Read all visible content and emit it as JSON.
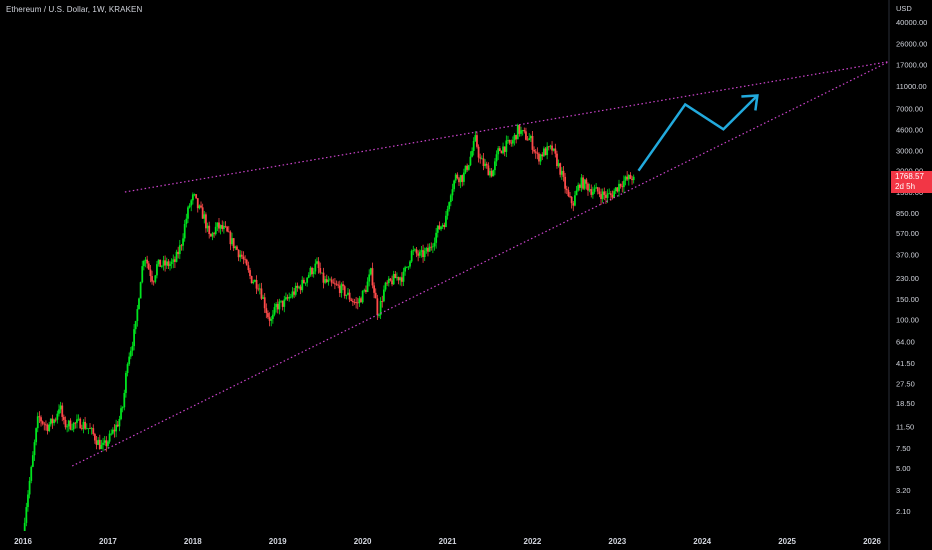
{
  "header": {
    "title": "Ethereum / U.S. Dollar, 1W, KRAKEN"
  },
  "price_tag": {
    "price": "1768.57",
    "countdown": "2d 5h",
    "color": "#f23645"
  },
  "colors": {
    "up": "#00e51f",
    "down": "#ff4a4a",
    "trendline": "#cc44cc",
    "arrow": "#22aadd",
    "background": "#000000"
  },
  "chart_data": {
    "type": "candlestick",
    "title": "Ethereum / U.S. Dollar, 1W, KRAKEN",
    "y_scale": "log",
    "y_unit": "USD",
    "y_ticks": [
      "40000.00",
      "26000.00",
      "17000.00",
      "11000.00",
      "7000.00",
      "4600.00",
      "3000.00",
      "2000.00",
      "1300.00",
      "850.00",
      "570.00",
      "370.00",
      "230.00",
      "150.00",
      "100.00",
      "64.00",
      "41.50",
      "27.50",
      "18.50",
      "11.50",
      "7.50",
      "5.00",
      "3.20",
      "2.10"
    ],
    "x_ticks": [
      "2016",
      "2017",
      "2018",
      "2019",
      "2020",
      "2021",
      "2022",
      "2023",
      "2024",
      "2025",
      "2026"
    ],
    "xlim": [
      2016.0,
      2026.3
    ],
    "ylim": [
      1.6,
      60000
    ],
    "current_price": 1768.57,
    "price_path": [
      [
        2016.0,
        1.0
      ],
      [
        2016.05,
        2.2
      ],
      [
        2016.12,
        5.0
      ],
      [
        2016.17,
        10.0
      ],
      [
        2016.2,
        14.0
      ],
      [
        2016.3,
        11.5
      ],
      [
        2016.4,
        13.5
      ],
      [
        2016.45,
        18.0
      ],
      [
        2016.5,
        12.0
      ],
      [
        2016.6,
        12.0
      ],
      [
        2016.7,
        12.5
      ],
      [
        2016.8,
        11.0
      ],
      [
        2016.9,
        8.5
      ],
      [
        2016.95,
        7.5
      ],
      [
        2017.0,
        8.2
      ],
      [
        2017.1,
        11.0
      ],
      [
        2017.15,
        13.0
      ],
      [
        2017.2,
        18.0
      ],
      [
        2017.25,
        45.0
      ],
      [
        2017.3,
        60.0
      ],
      [
        2017.35,
        90.0
      ],
      [
        2017.4,
        220.0
      ],
      [
        2017.45,
        380.0
      ],
      [
        2017.5,
        280.0
      ],
      [
        2017.55,
        220.0
      ],
      [
        2017.6,
        300.0
      ],
      [
        2017.7,
        300.0
      ],
      [
        2017.8,
        310.0
      ],
      [
        2017.88,
        450.0
      ],
      [
        2017.93,
        700.0
      ],
      [
        2017.98,
        1000.0
      ],
      [
        2018.03,
        1200.0
      ],
      [
        2018.08,
        950.0
      ],
      [
        2018.15,
        800.0
      ],
      [
        2018.22,
        500.0
      ],
      [
        2018.3,
        650.0
      ],
      [
        2018.4,
        600.0
      ],
      [
        2018.5,
        450.0
      ],
      [
        2018.6,
        350.0
      ],
      [
        2018.7,
        230.0
      ],
      [
        2018.8,
        200.0
      ],
      [
        2018.9,
        110.0
      ],
      [
        2018.95,
        95.0
      ],
      [
        2019.0,
        130.0
      ],
      [
        2019.1,
        140.0
      ],
      [
        2019.2,
        170.0
      ],
      [
        2019.3,
        200.0
      ],
      [
        2019.4,
        260.0
      ],
      [
        2019.48,
        300.0
      ],
      [
        2019.55,
        220.0
      ],
      [
        2019.65,
        200.0
      ],
      [
        2019.75,
        190.0
      ],
      [
        2019.85,
        160.0
      ],
      [
        2019.95,
        135.0
      ],
      [
        2020.05,
        180.0
      ],
      [
        2020.12,
        260.0
      ],
      [
        2020.2,
        110.0
      ],
      [
        2020.28,
        190.0
      ],
      [
        2020.4,
        230.0
      ],
      [
        2020.5,
        240.0
      ],
      [
        2020.6,
        390.0
      ],
      [
        2020.7,
        360.0
      ],
      [
        2020.8,
        400.0
      ],
      [
        2020.9,
        600.0
      ],
      [
        2021.0,
        750.0
      ],
      [
        2021.05,
        1300.0
      ],
      [
        2021.12,
        1800.0
      ],
      [
        2021.2,
        1750.0
      ],
      [
        2021.28,
        2500.0
      ],
      [
        2021.35,
        3800.0
      ],
      [
        2021.4,
        2500.0
      ],
      [
        2021.48,
        2100.0
      ],
      [
        2021.55,
        1900.0
      ],
      [
        2021.62,
        3000.0
      ],
      [
        2021.7,
        3300.0
      ],
      [
        2021.78,
        3500.0
      ],
      [
        2021.85,
        4600.0
      ],
      [
        2021.92,
        4100.0
      ],
      [
        2022.0,
        3700.0
      ],
      [
        2022.08,
        2600.0
      ],
      [
        2022.15,
        2900.0
      ],
      [
        2022.25,
        3100.0
      ],
      [
        2022.35,
        2000.0
      ],
      [
        2022.45,
        1100.0
      ],
      [
        2022.5,
        1050.0
      ],
      [
        2022.58,
        1600.0
      ],
      [
        2022.65,
        1500.0
      ],
      [
        2022.72,
        1350.0
      ],
      [
        2022.8,
        1300.0
      ],
      [
        2022.88,
        1200.0
      ],
      [
        2022.95,
        1220.0
      ],
      [
        2023.05,
        1550.0
      ],
      [
        2023.12,
        1650.0
      ],
      [
        2023.2,
        1768.57
      ]
    ],
    "lines": [
      {
        "role": "upper-trendline",
        "style": "dotted",
        "color": "#cc44cc",
        "points": [
          [
            2017.2,
            1300
          ],
          [
            2026.2,
            18000
          ]
        ]
      },
      {
        "role": "lower-trendline",
        "style": "dotted",
        "color": "#cc44cc",
        "points": [
          [
            2016.58,
            5.2
          ],
          [
            2026.2,
            18000
          ]
        ]
      },
      {
        "role": "projection-arrow",
        "style": "solid",
        "color": "#22aadd",
        "points": [
          [
            2023.25,
            2000
          ],
          [
            2023.8,
            7600
          ],
          [
            2024.25,
            4600
          ],
          [
            2024.65,
            9100
          ]
        ]
      }
    ]
  }
}
